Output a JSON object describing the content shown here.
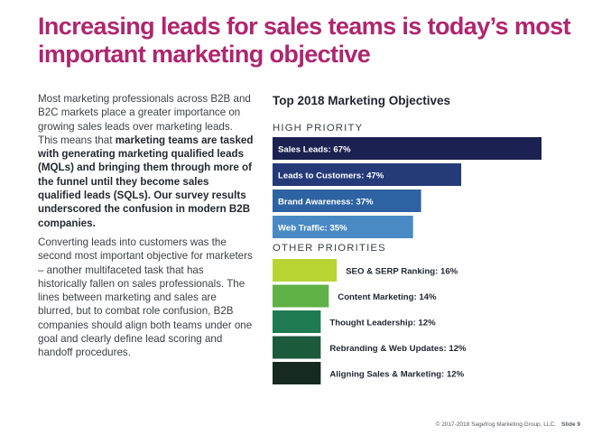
{
  "title": {
    "line1": "Increasing leads for sales teams is today’s most",
    "line2": "important marketing objective"
  },
  "paragraph1": {
    "plain1": "Most marketing professionals across B2B and B2C markets place a greater importance on growing sales leads over marketing leads. This means that ",
    "bold1": "marketing teams are tasked with generating marketing qualified leads (MQLs) and bringing them through more of the funnel until they become sales qualified leads (SQLs). Our survey results underscored the confusion in modern B2B companies."
  },
  "paragraph2": "Converting leads into customers was the second most important objective for marketers – another multifaceted task that has historically fallen on sales professionals. The lines between marketing and sales are blurred, but to combat role confusion, B2B companies should align both teams under one goal and clearly define lead scoring and handoff procedures.",
  "chart_data": {
    "type": "bar",
    "orientation": "horizontal",
    "title": "Top 2018 Marketing Objectives",
    "unit": "%",
    "xlim": [
      0,
      67
    ],
    "groups": [
      {
        "name": "HIGH PRIORITY",
        "label_position": "inside",
        "bars": [
          {
            "label": "Sales Leads: 67%",
            "value": 67,
            "color": "#1b2150"
          },
          {
            "label": "Leads to Customers: 47%",
            "value": 47,
            "color": "#253a78"
          },
          {
            "label": "Brand Awareness: 37%",
            "value": 37,
            "color": "#2e63a3"
          },
          {
            "label": "Web Traffic: 35%",
            "value": 35,
            "color": "#4a8ac4"
          }
        ]
      },
      {
        "name": "OTHER PRIORITIES",
        "label_position": "outside",
        "bars": [
          {
            "label": "SEO & SERP Ranking: 16%",
            "value": 16,
            "color": "#b8d433"
          },
          {
            "label": "Content Marketing: 14%",
            "value": 14,
            "color": "#5fb146"
          },
          {
            "label": "Thought Leadership: 12%",
            "value": 12,
            "color": "#1f7a52"
          },
          {
            "label": "Rebranding & Web Updates: 12%",
            "value": 12,
            "color": "#1c5a3c"
          },
          {
            "label": "Aligning Sales & Marketing: 12%",
            "value": 12,
            "color": "#162a22"
          }
        ]
      }
    ]
  },
  "footer": {
    "copyright": "© 2017-2018 Sagefrog Marketing Group, LLC.",
    "slide": "Slide 9"
  }
}
